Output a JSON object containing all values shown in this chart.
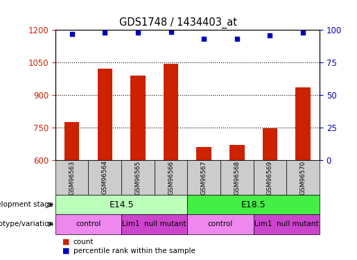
{
  "title": "GDS1748 / 1434403_at",
  "samples": [
    "GSM96563",
    "GSM96564",
    "GSM96565",
    "GSM96566",
    "GSM96567",
    "GSM96568",
    "GSM96569",
    "GSM96570"
  ],
  "bar_values": [
    775,
    1020,
    990,
    1045,
    660,
    670,
    745,
    935
  ],
  "percentile_values": [
    97,
    98,
    98,
    98.5,
    93,
    93,
    96,
    98
  ],
  "ylim_left": [
    600,
    1200
  ],
  "ylim_right": [
    0,
    100
  ],
  "yticks_left": [
    600,
    750,
    900,
    1050,
    1200
  ],
  "yticks_right": [
    0,
    25,
    50,
    75,
    100
  ],
  "bar_color": "#cc2200",
  "dot_color": "#0000bb",
  "tick_label_color_left": "#cc2200",
  "tick_label_color_right": "#0000bb",
  "bar_width": 0.45,
  "dev_stage_row": {
    "label": "development stage",
    "groups": [
      {
        "label": "E14.5",
        "span": [
          0,
          4
        ],
        "color": "#bbffbb"
      },
      {
        "label": "E18.5",
        "span": [
          4,
          8
        ],
        "color": "#44ee44"
      }
    ]
  },
  "genotype_row": {
    "label": "genotype/variation",
    "groups": [
      {
        "label": "control",
        "span": [
          0,
          2
        ],
        "color": "#ee88ee"
      },
      {
        "label": "Lim1  null mutant",
        "span": [
          2,
          4
        ],
        "color": "#cc44cc"
      },
      {
        "label": "control",
        "span": [
          4,
          6
        ],
        "color": "#ee88ee"
      },
      {
        "label": "Lim1  null mutant",
        "span": [
          6,
          8
        ],
        "color": "#cc44cc"
      }
    ]
  },
  "legend_count_color": "#cc2200",
  "legend_dot_color": "#0000bb",
  "sample_box_color": "#cccccc",
  "fig_width": 5.15,
  "fig_height": 3.75,
  "fig_dpi": 100
}
